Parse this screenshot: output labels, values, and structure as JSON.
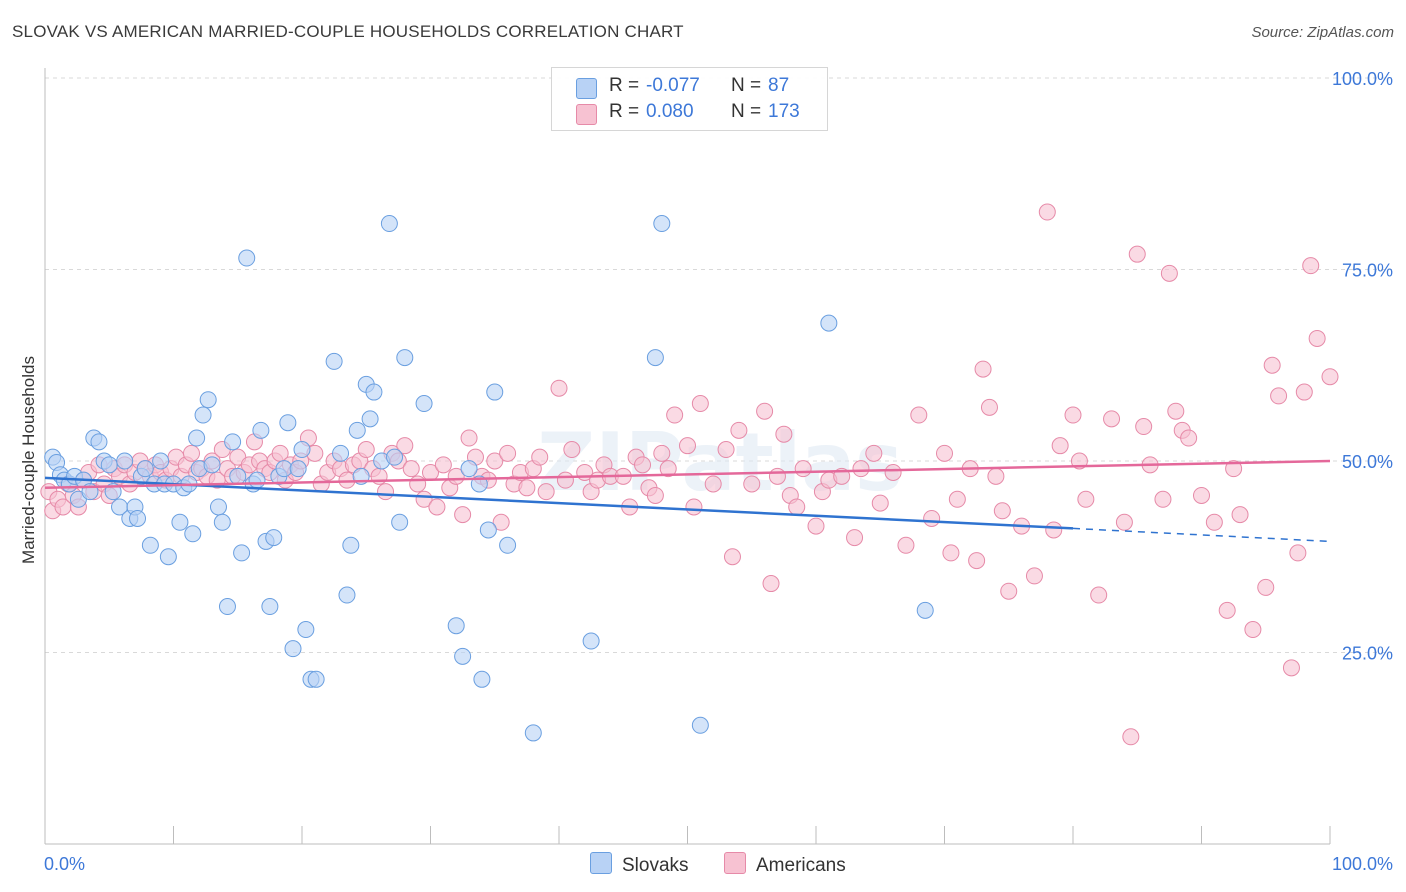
{
  "title": "SLOVAK VS AMERICAN MARRIED-COUPLE HOUSEHOLDS CORRELATION CHART",
  "source": "Source: ZipAtlas.com",
  "legend": {
    "r_label": "R =",
    "n_label": "N =",
    "rows": [
      {
        "name": "Slovaks",
        "r": "-0.077",
        "n": "87"
      },
      {
        "name": "Americans",
        "r": "0.080",
        "n": "173"
      }
    ]
  },
  "bottom_legend": [
    "Slovaks",
    "Americans"
  ],
  "colors": {
    "slovaks_fill": "#b8d2f5",
    "slovaks_stroke": "#6a9fe0",
    "slovaks_line": "#2f73d0",
    "americans_fill": "#f7c2d2",
    "americans_stroke": "#e68aa8",
    "americans_line": "#e4689a",
    "axis_text": "#3d78d8"
  },
  "chart_data": {
    "type": "scatter",
    "title": "SLOVAK VS AMERICAN MARRIED-COUPLE HOUSEHOLDS CORRELATION CHART",
    "xlabel": "",
    "ylabel": "Married-couple Households",
    "xlim": [
      0,
      100
    ],
    "ylim": [
      0,
      100
    ],
    "x_tick_labels": [
      "0.0%",
      "100.0%"
    ],
    "y_tick_labels": [
      "25.0%",
      "50.0%",
      "75.0%",
      "100.0%"
    ],
    "y_ticks": [
      25,
      50,
      75,
      100
    ],
    "grid": true,
    "watermark": "ZIPatlas",
    "series": [
      {
        "name": "Slovaks",
        "r": -0.077,
        "n": 87,
        "trend": {
          "x0": 0,
          "y0": 47.8,
          "x1": 80,
          "y1": 41.2,
          "dash_to_x": 100,
          "dash_to_y": 39.5
        },
        "points": [
          [
            0.6,
            50.5
          ],
          [
            0.9,
            49.8
          ],
          [
            1.2,
            48.2
          ],
          [
            1.5,
            47.5
          ],
          [
            1.9,
            47.0
          ],
          [
            2.3,
            48.0
          ],
          [
            2.6,
            45.0
          ],
          [
            3.0,
            47.5
          ],
          [
            3.5,
            46.0
          ],
          [
            3.8,
            53.0
          ],
          [
            4.2,
            52.5
          ],
          [
            4.6,
            50.0
          ],
          [
            5.0,
            49.5
          ],
          [
            5.3,
            46.0
          ],
          [
            5.8,
            44.0
          ],
          [
            6.2,
            50.0
          ],
          [
            6.6,
            42.5
          ],
          [
            7.0,
            44.0
          ],
          [
            7.2,
            42.5
          ],
          [
            7.5,
            48.0
          ],
          [
            7.8,
            49.0
          ],
          [
            8.2,
            39.0
          ],
          [
            8.5,
            47.0
          ],
          [
            9.0,
            50.0
          ],
          [
            9.3,
            47.0
          ],
          [
            9.6,
            37.5
          ],
          [
            10.0,
            47.0
          ],
          [
            10.5,
            42.0
          ],
          [
            10.8,
            46.5
          ],
          [
            11.2,
            47.0
          ],
          [
            11.5,
            40.5
          ],
          [
            11.8,
            53.0
          ],
          [
            12.0,
            49.0
          ],
          [
            12.3,
            56.0
          ],
          [
            12.7,
            58.0
          ],
          [
            13.0,
            49.5
          ],
          [
            13.5,
            44.0
          ],
          [
            13.8,
            42.0
          ],
          [
            14.2,
            31.0
          ],
          [
            14.6,
            52.5
          ],
          [
            15.0,
            48.0
          ],
          [
            15.3,
            38.0
          ],
          [
            15.7,
            76.5
          ],
          [
            16.2,
            47.0
          ],
          [
            16.5,
            47.5
          ],
          [
            16.8,
            54.0
          ],
          [
            17.2,
            39.5
          ],
          [
            17.5,
            31.0
          ],
          [
            17.8,
            40.0
          ],
          [
            18.2,
            48.0
          ],
          [
            18.6,
            49.0
          ],
          [
            18.9,
            55.0
          ],
          [
            19.3,
            25.5
          ],
          [
            19.7,
            49.0
          ],
          [
            20.0,
            51.5
          ],
          [
            20.3,
            28.0
          ],
          [
            20.7,
            21.5
          ],
          [
            21.1,
            21.5
          ],
          [
            22.5,
            63.0
          ],
          [
            23.0,
            51.0
          ],
          [
            23.5,
            32.5
          ],
          [
            23.8,
            39.0
          ],
          [
            24.3,
            54.0
          ],
          [
            24.6,
            48.0
          ],
          [
            25.0,
            60.0
          ],
          [
            25.3,
            55.5
          ],
          [
            25.6,
            59.0
          ],
          [
            26.2,
            50.0
          ],
          [
            26.8,
            81.0
          ],
          [
            27.2,
            50.5
          ],
          [
            27.6,
            42.0
          ],
          [
            28.0,
            63.5
          ],
          [
            29.5,
            57.5
          ],
          [
            32.0,
            28.5
          ],
          [
            32.5,
            24.5
          ],
          [
            33.0,
            49.0
          ],
          [
            33.8,
            47.0
          ],
          [
            34.0,
            21.5
          ],
          [
            34.5,
            41.0
          ],
          [
            35.0,
            59.0
          ],
          [
            36.0,
            39.0
          ],
          [
            38.0,
            14.5
          ],
          [
            42.5,
            26.5
          ],
          [
            47.5,
            63.5
          ],
          [
            48.0,
            81.0
          ],
          [
            51.0,
            15.5
          ],
          [
            61.0,
            68.0
          ],
          [
            68.5,
            30.5
          ]
        ]
      },
      {
        "name": "Americans",
        "r": 0.08,
        "n": 173,
        "trend": {
          "x0": 0,
          "y0": 46.5,
          "x1": 100,
          "y1": 50.0
        },
        "points": [
          [
            0.3,
            46.0
          ],
          [
            0.6,
            43.5
          ],
          [
            1.0,
            45.0
          ],
          [
            1.4,
            44.0
          ],
          [
            1.8,
            47.0
          ],
          [
            2.2,
            45.5
          ],
          [
            2.6,
            44.0
          ],
          [
            3.0,
            47.5
          ],
          [
            3.4,
            48.5
          ],
          [
            3.8,
            46.0
          ],
          [
            4.2,
            49.5
          ],
          [
            4.6,
            47.0
          ],
          [
            5.0,
            45.5
          ],
          [
            5.4,
            49.0
          ],
          [
            5.8,
            48.0
          ],
          [
            6.2,
            49.5
          ],
          [
            6.6,
            47.0
          ],
          [
            7.0,
            48.5
          ],
          [
            7.4,
            50.0
          ],
          [
            7.8,
            49.0
          ],
          [
            8.2,
            48.0
          ],
          [
            8.6,
            49.5
          ],
          [
            9.0,
            48.5
          ],
          [
            9.4,
            47.5
          ],
          [
            9.8,
            49.0
          ],
          [
            10.2,
            50.5
          ],
          [
            10.6,
            48.0
          ],
          [
            11.0,
            49.5
          ],
          [
            11.4,
            51.0
          ],
          [
            11.8,
            48.5
          ],
          [
            12.2,
            49.0
          ],
          [
            12.6,
            48.0
          ],
          [
            13.0,
            50.0
          ],
          [
            13.4,
            47.5
          ],
          [
            13.8,
            51.5
          ],
          [
            14.2,
            49.0
          ],
          [
            14.6,
            48.0
          ],
          [
            15.0,
            50.5
          ],
          [
            15.5,
            48.5
          ],
          [
            15.9,
            49.5
          ],
          [
            16.3,
            52.5
          ],
          [
            16.7,
            50.0
          ],
          [
            17.1,
            49.0
          ],
          [
            17.5,
            48.5
          ],
          [
            17.9,
            50.0
          ],
          [
            18.3,
            51.0
          ],
          [
            18.7,
            47.5
          ],
          [
            19.1,
            49.5
          ],
          [
            19.5,
            48.5
          ],
          [
            19.9,
            50.0
          ],
          [
            20.5,
            53.0
          ],
          [
            21.0,
            51.0
          ],
          [
            21.5,
            47.0
          ],
          [
            22.0,
            48.5
          ],
          [
            22.5,
            50.0
          ],
          [
            23.0,
            49.0
          ],
          [
            23.5,
            47.5
          ],
          [
            24.0,
            49.5
          ],
          [
            24.5,
            50.0
          ],
          [
            25.0,
            51.5
          ],
          [
            25.5,
            49.0
          ],
          [
            26.0,
            48.0
          ],
          [
            26.5,
            46.0
          ],
          [
            27.0,
            51.0
          ],
          [
            27.5,
            50.0
          ],
          [
            28.0,
            52.0
          ],
          [
            28.5,
            49.0
          ],
          [
            29.0,
            47.0
          ],
          [
            29.5,
            45.0
          ],
          [
            30.0,
            48.5
          ],
          [
            30.5,
            44.0
          ],
          [
            31.0,
            49.5
          ],
          [
            31.5,
            46.5
          ],
          [
            32.0,
            48.0
          ],
          [
            32.5,
            43.0
          ],
          [
            33.0,
            53.0
          ],
          [
            33.5,
            50.5
          ],
          [
            34.0,
            48.0
          ],
          [
            34.5,
            47.5
          ],
          [
            35.0,
            50.0
          ],
          [
            35.5,
            42.0
          ],
          [
            36.0,
            51.0
          ],
          [
            36.5,
            47.0
          ],
          [
            37.0,
            48.5
          ],
          [
            37.5,
            46.5
          ],
          [
            38.0,
            49.0
          ],
          [
            38.5,
            50.5
          ],
          [
            39.0,
            46.0
          ],
          [
            40.0,
            59.5
          ],
          [
            40.5,
            47.5
          ],
          [
            41.0,
            51.5
          ],
          [
            42.0,
            48.5
          ],
          [
            42.5,
            46.0
          ],
          [
            43.0,
            47.5
          ],
          [
            43.5,
            49.5
          ],
          [
            44.0,
            48.0
          ],
          [
            45.0,
            48.0
          ],
          [
            45.5,
            44.0
          ],
          [
            46.0,
            50.5
          ],
          [
            46.5,
            49.5
          ],
          [
            47.0,
            46.5
          ],
          [
            47.5,
            45.5
          ],
          [
            48.0,
            51.0
          ],
          [
            48.5,
            49.0
          ],
          [
            49.0,
            56.0
          ],
          [
            50.0,
            52.0
          ],
          [
            50.5,
            44.0
          ],
          [
            51.0,
            57.5
          ],
          [
            52.0,
            47.0
          ],
          [
            53.0,
            51.5
          ],
          [
            53.5,
            37.5
          ],
          [
            54.0,
            54.0
          ],
          [
            55.0,
            47.0
          ],
          [
            56.0,
            56.5
          ],
          [
            56.5,
            34.0
          ],
          [
            57.0,
            48.0
          ],
          [
            57.5,
            53.5
          ],
          [
            58.0,
            45.5
          ],
          [
            58.5,
            44.0
          ],
          [
            59.0,
            49.0
          ],
          [
            60.0,
            41.5
          ],
          [
            60.5,
            46.0
          ],
          [
            61.0,
            47.5
          ],
          [
            62.0,
            48.0
          ],
          [
            63.0,
            40.0
          ],
          [
            63.5,
            49.0
          ],
          [
            64.5,
            51.0
          ],
          [
            65.0,
            44.5
          ],
          [
            66.0,
            48.5
          ],
          [
            67.0,
            39.0
          ],
          [
            68.0,
            56.0
          ],
          [
            69.0,
            42.5
          ],
          [
            70.0,
            51.0
          ],
          [
            70.5,
            38.0
          ],
          [
            71.0,
            45.0
          ],
          [
            72.0,
            49.0
          ],
          [
            72.5,
            37.0
          ],
          [
            73.0,
            62.0
          ],
          [
            73.5,
            57.0
          ],
          [
            74.0,
            48.0
          ],
          [
            74.5,
            43.5
          ],
          [
            75.0,
            33.0
          ],
          [
            76.0,
            41.5
          ],
          [
            77.0,
            35.0
          ],
          [
            78.0,
            82.5
          ],
          [
            78.5,
            41.0
          ],
          [
            79.0,
            52.0
          ],
          [
            80.0,
            56.0
          ],
          [
            80.5,
            50.0
          ],
          [
            81.0,
            45.0
          ],
          [
            82.0,
            32.5
          ],
          [
            83.0,
            55.5
          ],
          [
            84.0,
            42.0
          ],
          [
            84.5,
            14.0
          ],
          [
            85.0,
            77.0
          ],
          [
            85.5,
            54.5
          ],
          [
            86.0,
            49.5
          ],
          [
            87.0,
            45.0
          ],
          [
            87.5,
            74.5
          ],
          [
            88.0,
            56.5
          ],
          [
            88.5,
            54.0
          ],
          [
            89.0,
            53.0
          ],
          [
            90.0,
            45.5
          ],
          [
            91.0,
            42.0
          ],
          [
            92.0,
            30.5
          ],
          [
            92.5,
            49.0
          ],
          [
            93.0,
            43.0
          ],
          [
            94.0,
            28.0
          ],
          [
            95.0,
            33.5
          ],
          [
            95.5,
            62.5
          ],
          [
            96.0,
            58.5
          ],
          [
            97.0,
            23.0
          ],
          [
            97.5,
            38.0
          ],
          [
            98.0,
            59.0
          ],
          [
            98.5,
            75.5
          ],
          [
            99.0,
            66.0
          ],
          [
            100.0,
            61.0
          ]
        ]
      }
    ]
  }
}
